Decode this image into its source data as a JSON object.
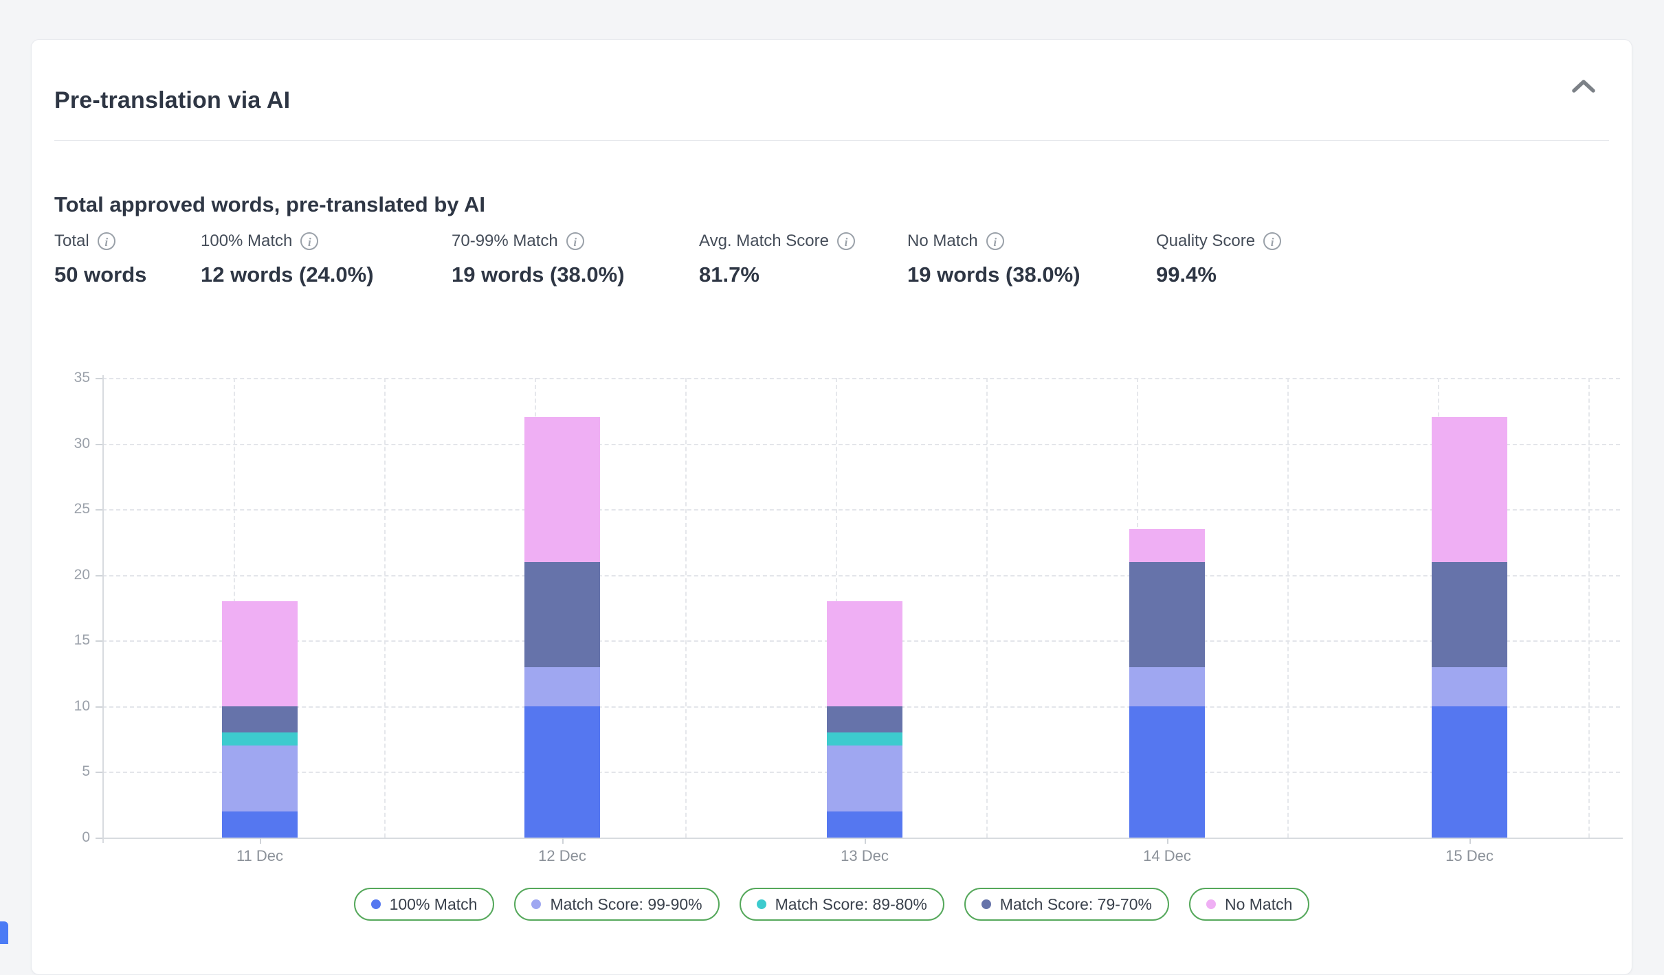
{
  "card": {
    "title": "Pre-translation via AI",
    "section_title": "Total approved words, pre-translated by AI",
    "collapse_icon": "chevron-up"
  },
  "stats": [
    {
      "label": "Total",
      "value": "50 words"
    },
    {
      "label": "100% Match",
      "value": "12 words (24.0%)"
    },
    {
      "label": "70-99% Match",
      "value": "19 words (38.0%)"
    },
    {
      "label": "Avg. Match Score",
      "value": "81.7%"
    },
    {
      "label": "No Match",
      "value": "19 words (38.0%)"
    },
    {
      "label": "Quality Score",
      "value": "99.4%"
    }
  ],
  "chart_data": {
    "type": "bar",
    "stacked": true,
    "title": "Total approved words, pre-translated by AI",
    "categories": [
      "11 Dec",
      "12 Dec",
      "13 Dec",
      "14 Dec",
      "15 Dec"
    ],
    "series": [
      {
        "name": "100% Match",
        "color": "#5577f0",
        "values": [
          2,
          10,
          2,
          10,
          10
        ]
      },
      {
        "name": "Match Score: 99-90%",
        "color": "#9fa7f1",
        "values": [
          5,
          3,
          5,
          3,
          3
        ]
      },
      {
        "name": "Match Score: 89-80%",
        "color": "#3dcbce",
        "values": [
          1,
          0,
          1,
          0,
          0
        ]
      },
      {
        "name": "Match Score: 79-70%",
        "color": "#6673aa",
        "values": [
          2,
          8,
          2,
          8,
          8
        ]
      },
      {
        "name": "No Match",
        "color": "#efaff4",
        "values": [
          8,
          11,
          8,
          2.5,
          11
        ]
      }
    ],
    "totals": [
      18,
      32,
      18,
      23.5,
      32
    ],
    "xlabel": "",
    "ylabel": "",
    "ylim": [
      0,
      35
    ],
    "ytick_step": 5,
    "yticks": [
      0,
      5,
      10,
      15,
      20,
      25,
      30,
      35
    ],
    "grid": "dashed",
    "legend_position": "bottom"
  },
  "legend": {
    "border_color": "#55a85b",
    "items": [
      {
        "label": "100% Match",
        "color": "#5577f0"
      },
      {
        "label": "Match Score: 99-90%",
        "color": "#9fa7f1"
      },
      {
        "label": "Match Score: 89-80%",
        "color": "#3dcbce"
      },
      {
        "label": "Match Score: 79-70%",
        "color": "#6673aa"
      },
      {
        "label": "No Match",
        "color": "#efaff4"
      }
    ]
  }
}
